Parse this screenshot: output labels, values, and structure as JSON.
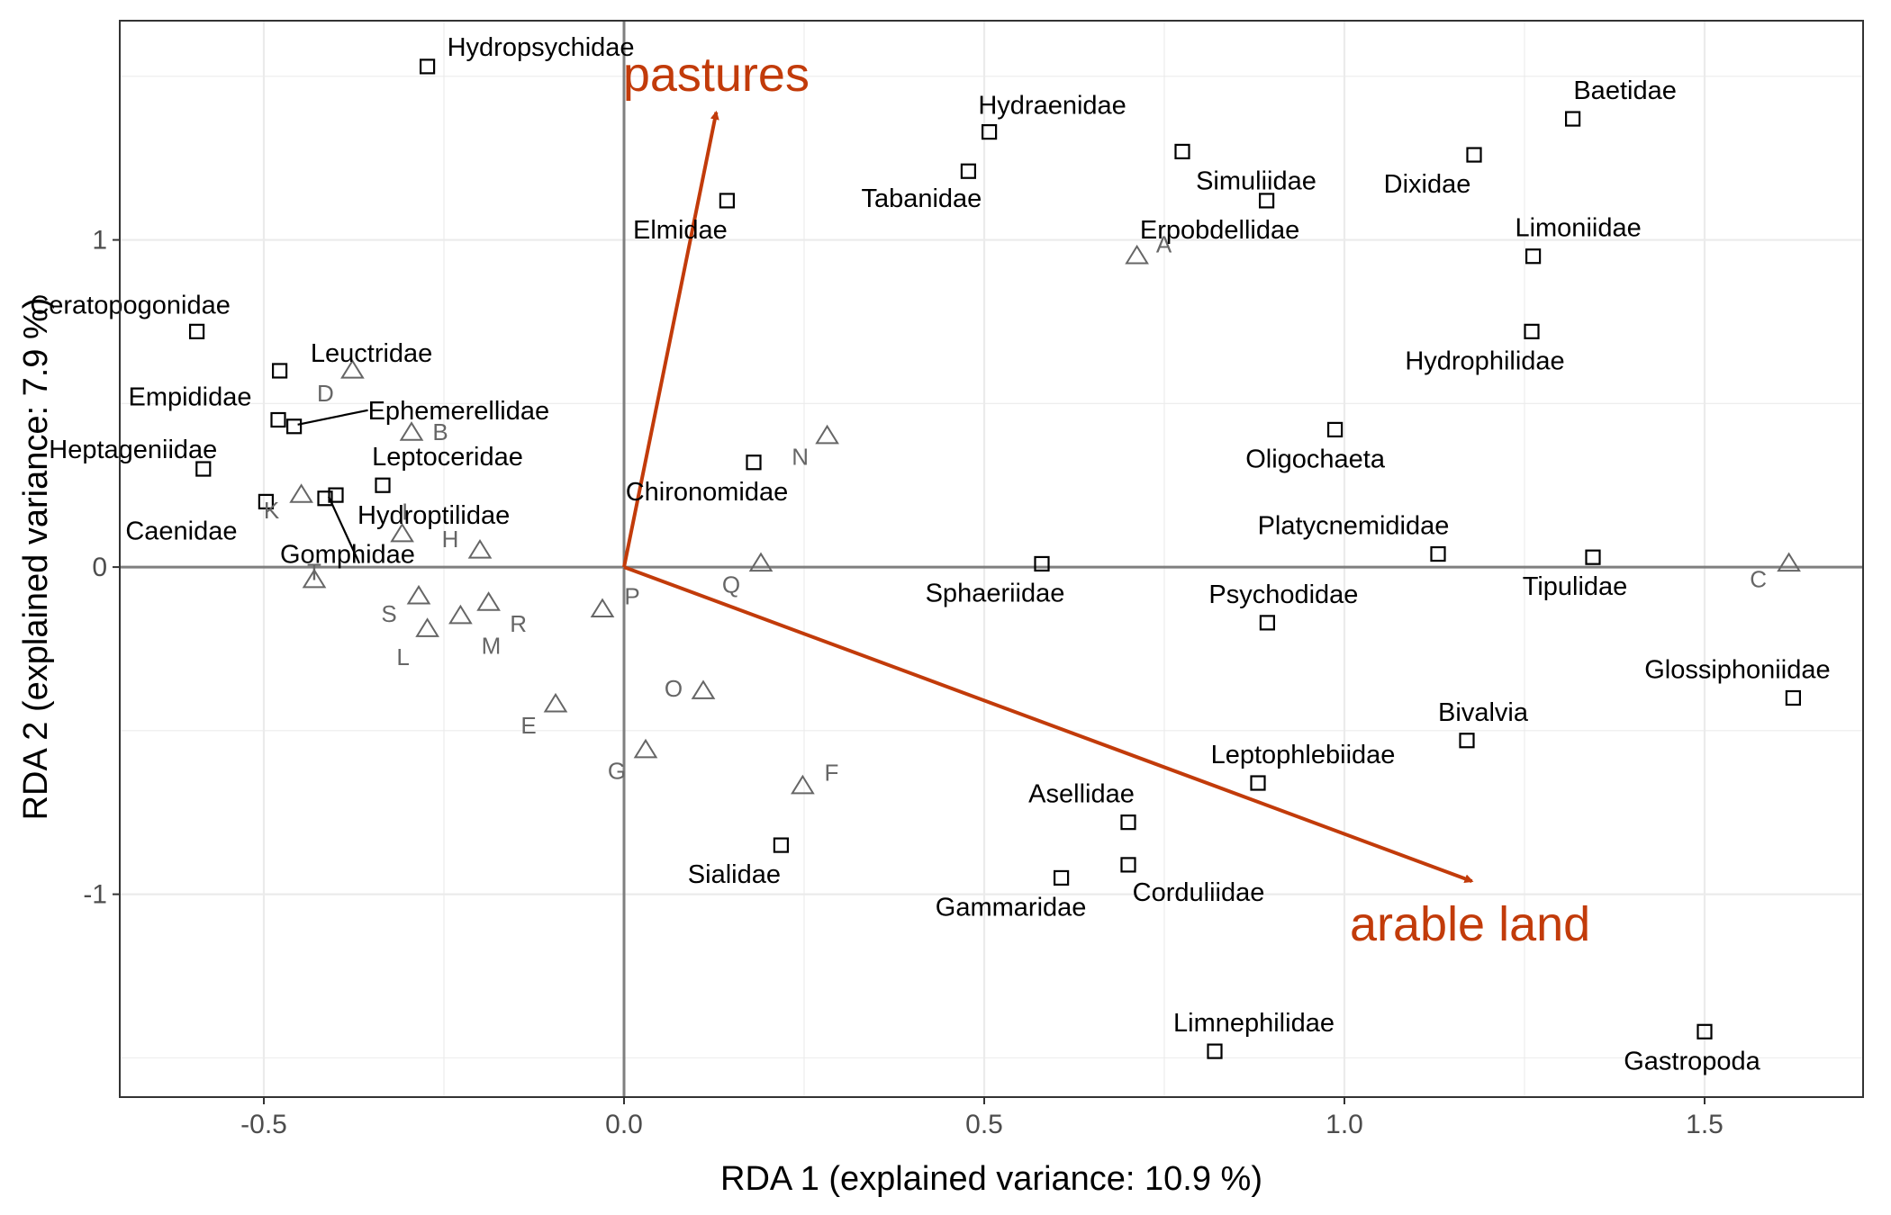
{
  "chart_data": {
    "type": "scatter",
    "title": "",
    "xlabel": "RDA 1 (explained variance: 10.9 %)",
    "ylabel": "RDA 2 (explained variance: 7.9 %)",
    "xlim": [
      -0.7,
      1.72
    ],
    "ylim": [
      -1.62,
      1.67
    ],
    "xticks": [
      -0.5,
      0.0,
      0.5,
      1.0,
      1.5
    ],
    "xtick_labels": [
      "-0.5",
      "0.0",
      "0.5",
      "1.0",
      "1.5"
    ],
    "yticks": [
      -1,
      0,
      1
    ],
    "ytick_labels": [
      "-1",
      "0",
      "1"
    ],
    "grid": true,
    "colors": {
      "arrow": "#c23b0a",
      "taxa": "#000000",
      "sites": "#666666",
      "zero_line": "#7f7f7f",
      "grid": "#ebebeb"
    },
    "taxa": [
      {
        "name": "Hydropsychidae",
        "x": -0.273,
        "y": 1.53
      },
      {
        "name": "Hydraenidae",
        "x": 0.507,
        "y": 1.33
      },
      {
        "name": "Tabanidae",
        "x": 0.478,
        "y": 1.21
      },
      {
        "name": "Elmidae",
        "x": 0.143,
        "y": 1.12
      },
      {
        "name": "Simuliidae",
        "x": 0.775,
        "y": 1.27
      },
      {
        "name": "Erpobdellidae",
        "x": 0.892,
        "y": 1.12
      },
      {
        "name": "Baetidae",
        "x": 1.317,
        "y": 1.37
      },
      {
        "name": "Dixidae",
        "x": 1.18,
        "y": 1.26
      },
      {
        "name": "Limoniidae",
        "x": 1.262,
        "y": 0.95
      },
      {
        "name": "Hydrophilidae",
        "x": 1.26,
        "y": 0.72
      },
      {
        "name": "Ceratopogonidae",
        "x": -0.593,
        "y": 0.72
      },
      {
        "name": "Leuctridae",
        "x": -0.478,
        "y": 0.6
      },
      {
        "name": "Empididae",
        "x": -0.48,
        "y": 0.45
      },
      {
        "name": "Ephemerellidae",
        "x": -0.458,
        "y": 0.43
      },
      {
        "name": "Heptageniidae",
        "x": -0.584,
        "y": 0.3
      },
      {
        "name": "Leptoceridae",
        "x": -0.335,
        "y": 0.25
      },
      {
        "name": "Hydroptilidae",
        "x": -0.4,
        "y": 0.22
      },
      {
        "name": "Caenidae",
        "x": -0.497,
        "y": 0.2
      },
      {
        "name": "Gomphidae",
        "x": -0.415,
        "y": 0.21
      },
      {
        "name": "Chironomidae",
        "x": 0.18,
        "y": 0.32
      },
      {
        "name": "Oligochaeta",
        "x": 0.987,
        "y": 0.42
      },
      {
        "name": "Platycnemididae",
        "x": 1.13,
        "y": 0.04
      },
      {
        "name": "Tipulidae",
        "x": 1.345,
        "y": 0.03
      },
      {
        "name": "Sphaeriidae",
        "x": 0.58,
        "y": 0.01
      },
      {
        "name": "Psychodidae",
        "x": 0.893,
        "y": -0.17
      },
      {
        "name": "Glossiphoniidae",
        "x": 1.623,
        "y": -0.4
      },
      {
        "name": "Bivalvia",
        "x": 1.17,
        "y": -0.53
      },
      {
        "name": "Leptophlebiidae",
        "x": 0.88,
        "y": -0.66
      },
      {
        "name": "Asellidae",
        "x": 0.7,
        "y": -0.78
      },
      {
        "name": "Corduliidae",
        "x": 0.7,
        "y": -0.91
      },
      {
        "name": "Gammaridae",
        "x": 0.607,
        "y": -0.95
      },
      {
        "name": "Sialidae",
        "x": 0.218,
        "y": -0.85
      },
      {
        "name": "Limnephilidae",
        "x": 0.82,
        "y": -1.48
      },
      {
        "name": "Gastropoda",
        "x": 1.5,
        "y": -1.42
      }
    ],
    "sites": [
      {
        "name": "A",
        "x": 0.712,
        "y": 0.95
      },
      {
        "name": "B",
        "x": -0.295,
        "y": 0.41
      },
      {
        "name": "C",
        "x": 1.617,
        "y": 0.01
      },
      {
        "name": "D",
        "x": -0.377,
        "y": 0.6
      },
      {
        "name": "E",
        "x": -0.095,
        "y": -0.42
      },
      {
        "name": "F",
        "x": 0.248,
        "y": -0.67
      },
      {
        "name": "G",
        "x": 0.03,
        "y": -0.56
      },
      {
        "name": "H",
        "x": -0.2,
        "y": 0.05
      },
      {
        "name": "I",
        "x": -0.308,
        "y": 0.1
      },
      {
        "name": "K",
        "x": -0.448,
        "y": 0.22
      },
      {
        "name": "L",
        "x": -0.273,
        "y": -0.19
      },
      {
        "name": "M",
        "x": -0.227,
        "y": -0.15
      },
      {
        "name": "N",
        "x": 0.282,
        "y": 0.4
      },
      {
        "name": "O",
        "x": 0.11,
        "y": -0.38
      },
      {
        "name": "P",
        "x": -0.03,
        "y": -0.13
      },
      {
        "name": "Q",
        "x": 0.19,
        "y": 0.01
      },
      {
        "name": "R",
        "x": -0.188,
        "y": -0.11
      },
      {
        "name": "S",
        "x": -0.285,
        "y": -0.09
      },
      {
        "name": "T",
        "x": -0.43,
        "y": -0.04
      }
    ],
    "arrows": [
      {
        "name": "pastures",
        "x": 0.128,
        "y": 1.39
      },
      {
        "name": "arable land",
        "x": 1.177,
        "y": -0.96
      }
    ]
  }
}
